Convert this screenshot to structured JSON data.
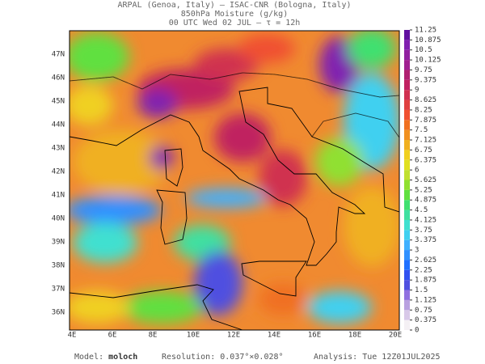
{
  "header": {
    "line1": "ARPAL (Genoa, Italy)  —  ISAC-CNR (Bologna, Italy)",
    "line2": "850hPa Moisture (g/kg)",
    "line3": "00 UTC Wed 02 JUL  —  τ = 12h"
  },
  "map": {
    "lat_labels": [
      "47N",
      "46N",
      "45N",
      "44N",
      "43N",
      "42N",
      "41N",
      "40N",
      "39N",
      "38N",
      "37N",
      "36N"
    ],
    "lon_labels": [
      "4E",
      "6E",
      "8E",
      "10E",
      "12E",
      "14E",
      "16E",
      "18E",
      "20E"
    ]
  },
  "colorbar": {
    "ticks": [
      0,
      0.375,
      0.75,
      1.125,
      1.5,
      1.875,
      2.25,
      2.625,
      3,
      3.375,
      3.75,
      4.125,
      4.5,
      4.875,
      5.25,
      5.625,
      6,
      6.375,
      6.75,
      7.125,
      7.5,
      7.875,
      8.25,
      8.625,
      9,
      9.375,
      9.75,
      10.125,
      10.5,
      10.875,
      11.25
    ],
    "colors": [
      "#f4f0f4",
      "#d8c8e8",
      "#b8a0e0",
      "#9070e0",
      "#5050e0",
      "#3050f0",
      "#2070ff",
      "#3090ff",
      "#40b0ff",
      "#40d0f0",
      "#40e0d0",
      "#40e0a0",
      "#40e070",
      "#60e040",
      "#90e030",
      "#c0e030",
      "#e0e020",
      "#f0d020",
      "#f0b020",
      "#f09020",
      "#f07020",
      "#f05030",
      "#e04040",
      "#d03050",
      "#c02060",
      "#b02070",
      "#a02090",
      "#9020a0",
      "#8020b0",
      "#6010a0"
    ]
  },
  "footer": {
    "model_label": "Model:",
    "model": "moloch",
    "resolution_label": "Resolution:",
    "resolution": "0.037°×0.028°",
    "analysis_label": "Analysis:",
    "analysis": "Tue 12Z01JUL2025"
  }
}
